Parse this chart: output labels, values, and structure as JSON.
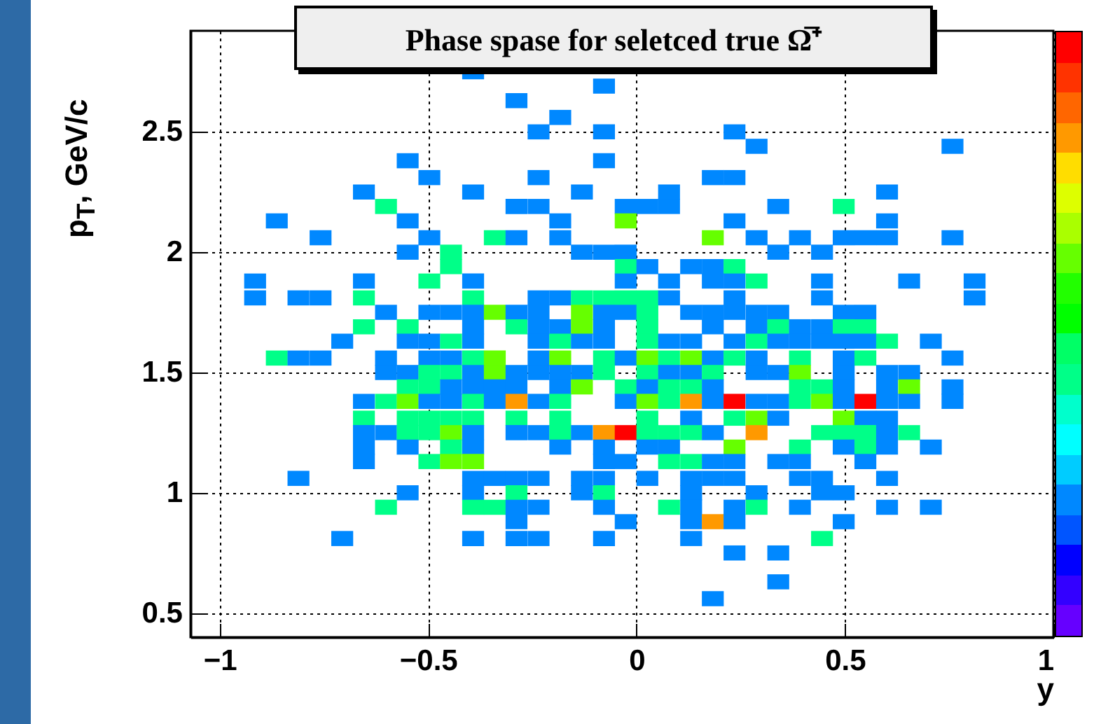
{
  "chart_data": {
    "type": "scatter",
    "title": "Phase spase for seletced true Ω̅⁺",
    "xlabel": "y",
    "ylabel": "p$_{T}$, GeV/c",
    "marker": "square",
    "grid": true,
    "xlim": [
      -1.07,
      1.0
    ],
    "ylim": [
      0.4,
      2.92
    ],
    "xticks": [
      -1,
      -0.5,
      0,
      0.5,
      1
    ],
    "yticks": [
      0.5,
      1,
      1.5,
      2,
      2.5
    ],
    "x": [
      -0.392,
      -0.078,
      -0.288,
      -0.183,
      -0.235,
      -0.078,
      0.235,
      0.288,
      0.758,
      -0.549,
      -0.078,
      -0.497,
      -0.235,
      0.183,
      0.235,
      -0.654,
      -0.392,
      -0.131,
      0.078,
      0.601,
      -0.601,
      -0.288,
      -0.235,
      -0.026,
      0.026,
      0.078,
      0.34,
      0.497,
      -0.863,
      -0.549,
      -0.183,
      -0.026,
      0.235,
      0.601,
      -0.758,
      -0.497,
      -0.34,
      -0.288,
      -0.183,
      0.183,
      0.288,
      0.392,
      0.497,
      0.549,
      0.601,
      0.758,
      -0.549,
      -0.445,
      -0.131,
      -0.078,
      -0.026,
      0.34,
      0.445,
      -0.445,
      -0.026,
      0.026,
      0.131,
      0.183,
      0.235,
      -0.915,
      -0.654,
      -0.497,
      -0.392,
      -0.026,
      0.078,
      0.183,
      0.235,
      0.288,
      0.445,
      0.654,
      0.811,
      -0.915,
      -0.811,
      -0.758,
      -0.654,
      -0.392,
      -0.235,
      -0.183,
      -0.131,
      -0.078,
      -0.026,
      0.026,
      0.078,
      0.235,
      0.445,
      0.811,
      -0.601,
      -0.497,
      -0.445,
      -0.392,
      -0.34,
      -0.288,
      -0.235,
      -0.131,
      -0.078,
      -0.026,
      0.026,
      0.131,
      0.183,
      0.235,
      0.288,
      0.34,
      0.497,
      0.549,
      -0.654,
      -0.549,
      -0.392,
      -0.288,
      -0.235,
      -0.183,
      -0.131,
      -0.078,
      0.026,
      0.183,
      0.288,
      0.34,
      0.392,
      0.445,
      0.497,
      0.549,
      -0.706,
      -0.549,
      -0.497,
      -0.445,
      -0.392,
      -0.235,
      -0.183,
      -0.131,
      -0.078,
      0.026,
      0.078,
      0.131,
      0.235,
      0.288,
      0.34,
      0.392,
      0.445,
      0.497,
      0.549,
      0.601,
      0.706,
      -0.863,
      -0.811,
      -0.758,
      -0.601,
      -0.497,
      -0.445,
      -0.392,
      -0.34,
      -0.235,
      -0.183,
      -0.078,
      -0.026,
      0.026,
      0.078,
      0.131,
      0.183,
      0.235,
      0.288,
      0.392,
      0.497,
      0.549,
      0.758,
      -0.601,
      -0.549,
      -0.497,
      -0.445,
      -0.392,
      -0.34,
      -0.288,
      -0.235,
      -0.183,
      -0.131,
      -0.078,
      0.026,
      0.078,
      0.131,
      0.183,
      0.288,
      0.34,
      0.392,
      0.497,
      0.601,
      0.654,
      -0.549,
      -0.497,
      -0.445,
      -0.392,
      -0.34,
      -0.288,
      -0.183,
      -0.131,
      -0.026,
      0.026,
      0.078,
      0.131,
      0.183,
      0.392,
      0.445,
      0.497,
      0.601,
      0.654,
      0.758,
      -0.654,
      -0.601,
      -0.549,
      -0.497,
      -0.445,
      -0.392,
      -0.34,
      -0.288,
      -0.235,
      -0.183,
      -0.026,
      0.026,
      0.078,
      0.131,
      0.183,
      0.235,
      0.288,
      0.34,
      0.392,
      0.445,
      0.497,
      0.549,
      0.601,
      0.654,
      0.758,
      -0.654,
      -0.549,
      -0.497,
      -0.445,
      -0.392,
      -0.288,
      -0.183,
      0.026,
      0.131,
      0.235,
      0.288,
      0.34,
      0.497,
      0.549,
      0.601,
      -0.654,
      -0.601,
      -0.549,
      -0.497,
      -0.445,
      -0.392,
      -0.288,
      -0.235,
      -0.183,
      -0.131,
      -0.078,
      -0.026,
      0.026,
      0.078,
      0.131,
      0.183,
      0.288,
      0.445,
      0.497,
      0.549,
      0.601,
      0.654,
      -0.654,
      -0.549,
      -0.445,
      -0.392,
      -0.183,
      -0.078,
      0.026,
      0.078,
      0.235,
      0.392,
      0.497,
      0.549,
      0.601,
      0.706,
      -0.654,
      -0.497,
      -0.445,
      -0.392,
      -0.078,
      -0.026,
      0.078,
      0.131,
      0.183,
      0.235,
      0.34,
      0.392,
      0.549,
      -0.811,
      -0.392,
      -0.34,
      -0.288,
      -0.235,
      -0.131,
      -0.078,
      0.026,
      0.131,
      0.183,
      0.235,
      0.392,
      0.445,
      0.601,
      -0.549,
      -0.392,
      -0.288,
      -0.131,
      -0.078,
      0.131,
      0.288,
      0.445,
      0.497,
      -0.601,
      -0.392,
      -0.34,
      -0.288,
      -0.235,
      -0.078,
      0.078,
      0.131,
      0.235,
      0.288,
      0.392,
      0.601,
      0.706,
      -0.288,
      -0.026,
      0.131,
      0.183,
      0.235,
      0.497,
      -0.706,
      -0.392,
      -0.288,
      -0.235,
      -0.078,
      0.131,
      0.445,
      0.235,
      0.34,
      0.34,
      0.183
    ],
    "values": [
      2.75,
      2.69,
      2.63,
      2.56,
      2.5,
      2.5,
      2.5,
      2.44,
      2.44,
      2.38,
      2.38,
      2.31,
      2.31,
      2.31,
      2.31,
      2.25,
      2.25,
      2.25,
      2.25,
      2.25,
      2.19,
      2.19,
      2.19,
      2.19,
      2.19,
      2.19,
      2.19,
      2.19,
      2.13,
      2.13,
      2.13,
      2.13,
      2.13,
      2.13,
      2.06,
      2.06,
      2.06,
      2.06,
      2.06,
      2.06,
      2.06,
      2.06,
      2.06,
      2.06,
      2.06,
      2.06,
      2,
      2,
      2,
      2,
      2,
      2,
      2,
      1.94,
      1.94,
      1.94,
      1.94,
      1.94,
      1.94,
      1.88,
      1.88,
      1.88,
      1.88,
      1.88,
      1.88,
      1.88,
      1.88,
      1.88,
      1.88,
      1.88,
      1.88,
      1.81,
      1.81,
      1.81,
      1.81,
      1.81,
      1.81,
      1.81,
      1.81,
      1.81,
      1.81,
      1.81,
      1.81,
      1.81,
      1.81,
      1.81,
      1.75,
      1.75,
      1.75,
      1.75,
      1.75,
      1.75,
      1.75,
      1.75,
      1.75,
      1.75,
      1.75,
      1.75,
      1.75,
      1.75,
      1.75,
      1.75,
      1.75,
      1.75,
      1.69,
      1.69,
      1.69,
      1.69,
      1.69,
      1.69,
      1.69,
      1.69,
      1.69,
      1.69,
      1.69,
      1.69,
      1.69,
      1.69,
      1.69,
      1.69,
      1.63,
      1.63,
      1.63,
      1.63,
      1.63,
      1.63,
      1.63,
      1.63,
      1.63,
      1.63,
      1.63,
      1.63,
      1.63,
      1.63,
      1.63,
      1.63,
      1.63,
      1.63,
      1.63,
      1.63,
      1.63,
      1.56,
      1.56,
      1.56,
      1.56,
      1.56,
      1.56,
      1.56,
      1.56,
      1.56,
      1.56,
      1.56,
      1.56,
      1.56,
      1.56,
      1.56,
      1.56,
      1.56,
      1.56,
      1.56,
      1.56,
      1.56,
      1.56,
      1.5,
      1.5,
      1.5,
      1.5,
      1.5,
      1.5,
      1.5,
      1.5,
      1.5,
      1.5,
      1.5,
      1.5,
      1.5,
      1.5,
      1.5,
      1.5,
      1.5,
      1.5,
      1.5,
      1.5,
      1.5,
      1.44,
      1.44,
      1.44,
      1.44,
      1.44,
      1.44,
      1.44,
      1.44,
      1.44,
      1.44,
      1.44,
      1.44,
      1.44,
      1.44,
      1.44,
      1.44,
      1.44,
      1.44,
      1.44,
      1.38,
      1.38,
      1.38,
      1.38,
      1.38,
      1.38,
      1.38,
      1.38,
      1.38,
      1.38,
      1.38,
      1.38,
      1.38,
      1.38,
      1.38,
      1.38,
      1.38,
      1.38,
      1.38,
      1.38,
      1.38,
      1.38,
      1.38,
      1.38,
      1.38,
      1.31,
      1.31,
      1.31,
      1.31,
      1.31,
      1.31,
      1.31,
      1.31,
      1.31,
      1.31,
      1.31,
      1.31,
      1.31,
      1.31,
      1.31,
      1.25,
      1.25,
      1.25,
      1.25,
      1.25,
      1.25,
      1.25,
      1.25,
      1.25,
      1.25,
      1.25,
      1.25,
      1.25,
      1.25,
      1.25,
      1.25,
      1.25,
      1.25,
      1.25,
      1.25,
      1.25,
      1.25,
      1.19,
      1.19,
      1.19,
      1.19,
      1.19,
      1.19,
      1.19,
      1.19,
      1.19,
      1.19,
      1.19,
      1.19,
      1.19,
      1.19,
      1.13,
      1.13,
      1.13,
      1.13,
      1.13,
      1.13,
      1.13,
      1.13,
      1.13,
      1.13,
      1.13,
      1.13,
      1.13,
      1.06,
      1.06,
      1.06,
      1.06,
      1.06,
      1.06,
      1.06,
      1.06,
      1.06,
      1.06,
      1.06,
      1.06,
      1.06,
      1.06,
      1,
      1,
      1,
      1,
      1,
      1,
      1,
      1,
      1,
      0.94,
      0.94,
      0.94,
      0.94,
      0.94,
      0.94,
      0.94,
      0.94,
      0.94,
      0.94,
      0.94,
      0.94,
      0.94,
      0.88,
      0.88,
      0.88,
      0.88,
      0.88,
      0.88,
      0.81,
      0.81,
      0.81,
      0.81,
      0.81,
      0.81,
      0.81,
      0.75,
      0.75,
      0.63,
      0.56
    ],
    "colors": [
      "#0088ff",
      "#0088ff",
      "#0088ff",
      "#0088ff",
      "#0088ff",
      "#0088ff",
      "#0088ff",
      "#0088ff",
      "#0088ff",
      "#0088ff",
      "#0088ff",
      "#0088ff",
      "#0088ff",
      "#0088ff",
      "#0088ff",
      "#0088ff",
      "#0088ff",
      "#0088ff",
      "#0088ff",
      "#0088ff",
      "#00ff88",
      "#0088ff",
      "#0088ff",
      "#0088ff",
      "#0088ff",
      "#0088ff",
      "#0088ff",
      "#00ff88",
      "#0088ff",
      "#0088ff",
      "#0088ff",
      "#66ff00",
      "#0088ff",
      "#0088ff",
      "#0088ff",
      "#0088ff",
      "#00ff88",
      "#0088ff",
      "#0088ff",
      "#66ff00",
      "#0088ff",
      "#0088ff",
      "#0088ff",
      "#0088ff",
      "#0088ff",
      "#0088ff",
      "#0088ff",
      "#00ff88",
      "#0088ff",
      "#0088ff",
      "#0088ff",
      "#0088ff",
      "#0088ff",
      "#00ff88",
      "#00ff88",
      "#0088ff",
      "#0088ff",
      "#0088ff",
      "#00ff88",
      "#0088ff",
      "#0088ff",
      "#00ff88",
      "#0088ff",
      "#0088ff",
      "#0088ff",
      "#0088ff",
      "#0088ff",
      "#00ff88",
      "#0088ff",
      "#0088ff",
      "#0088ff",
      "#0088ff",
      "#0088ff",
      "#0088ff",
      "#00ff88",
      "#00ff88",
      "#0088ff",
      "#0088ff",
      "#00ff88",
      "#00ff88",
      "#00ff88",
      "#00ff88",
      "#0088ff",
      "#0088ff",
      "#0088ff",
      "#0088ff",
      "#0088ff",
      "#0088ff",
      "#0088ff",
      "#0088ff",
      "#66ff00",
      "#0088ff",
      "#0088ff",
      "#66ff00",
      "#0088ff",
      "#0088ff",
      "#00ff88",
      "#0088ff",
      "#0088ff",
      "#0088ff",
      "#0088ff",
      "#0088ff",
      "#0088ff",
      "#0088ff",
      "#00ff88",
      "#00ff88",
      "#0088ff",
      "#00ff88",
      "#0088ff",
      "#0088ff",
      "#66ff00",
      "#0088ff",
      "#00ff88",
      "#0088ff",
      "#0088ff",
      "#00ff88",
      "#0088ff",
      "#0088ff",
      "#00ff88",
      "#00ff88",
      "#0088ff",
      "#0088ff",
      "#0088ff",
      "#00ff88",
      "#0088ff",
      "#0088ff",
      "#00ff88",
      "#0088ff",
      "#0088ff",
      "#00ff88",
      "#0088ff",
      "#0088ff",
      "#0088ff",
      "#00ff88",
      "#0088ff",
      "#0088ff",
      "#0088ff",
      "#0088ff",
      "#0088ff",
      "#00ff88",
      "#0088ff",
      "#00ff88",
      "#0088ff",
      "#0088ff",
      "#0088ff",
      "#0088ff",
      "#0088ff",
      "#00ff88",
      "#66ff00",
      "#0088ff",
      "#66ff00",
      "#00ff88",
      "#0088ff",
      "#66ff00",
      "#00ff88",
      "#66ff00",
      "#0088ff",
      "#00ff88",
      "#0088ff",
      "#00ff88",
      "#0088ff",
      "#00ff88",
      "#0088ff",
      "#0088ff",
      "#0088ff",
      "#00ff88",
      "#00ff88",
      "#0088ff",
      "#66ff00",
      "#0088ff",
      "#0088ff",
      "#0088ff",
      "#0088ff",
      "#00ff88",
      "#00ff88",
      "#0088ff",
      "#0088ff",
      "#00ff88",
      "#0088ff",
      "#0088ff",
      "#66ff00",
      "#0088ff",
      "#0088ff",
      "#0088ff",
      "#00ff88",
      "#00ff88",
      "#0088ff",
      "#0088ff",
      "#0088ff",
      "#0088ff",
      "#0088ff",
      "#66ff00",
      "#00ff88",
      "#0088ff",
      "#00ff88",
      "#00ff88",
      "#0088ff",
      "#00ff88",
      "#00ff88",
      "#0088ff",
      "#0088ff",
      "#66ff00",
      "#0088ff",
      "#0088ff",
      "#00ff88",
      "#66ff00",
      "#0088ff",
      "#0088ff",
      "#00ff88",
      "#0088ff",
      "#ff9900",
      "#0088ff",
      "#00ff88",
      "#0088ff",
      "#66ff00",
      "#00ff88",
      "#ff9900",
      "#0088ff",
      "#ff0000",
      "#0088ff",
      "#0088ff",
      "#00ff88",
      "#66ff00",
      "#0088ff",
      "#ff0000",
      "#0088ff",
      "#0088ff",
      "#0088ff",
      "#00ff88",
      "#00ff88",
      "#00ff88",
      "#00ff88",
      "#00ff88",
      "#00ff88",
      "#00ff88",
      "#00ff88",
      "#0088ff",
      "#00ff88",
      "#66ff00",
      "#0088ff",
      "#66ff00",
      "#0088ff",
      "#0088ff",
      "#0088ff",
      "#0088ff",
      "#00ff88",
      "#00ff88",
      "#66ff00",
      "#0088ff",
      "#0088ff",
      "#0088ff",
      "#00ff88",
      "#0088ff",
      "#ff9900",
      "#ff0000",
      "#00ff88",
      "#00ff88",
      "#00ff88",
      "#0088ff",
      "#ff9900",
      "#00ff88",
      "#00ff88",
      "#00ff88",
      "#0088ff",
      "#00ff88",
      "#0088ff",
      "#0088ff",
      "#00ff88",
      "#0088ff",
      "#0088ff",
      "#0088ff",
      "#0088ff",
      "#0088ff",
      "#66ff00",
      "#00ff88",
      "#0088ff",
      "#00ff88",
      "#0088ff",
      "#0088ff",
      "#0088ff",
      "#00ff88",
      "#66ff00",
      "#66ff00",
      "#0088ff",
      "#0088ff",
      "#00ff88",
      "#00ff88",
      "#0088ff",
      "#0088ff",
      "#0088ff",
      "#0088ff",
      "#0088ff",
      "#0088ff",
      "#0088ff",
      "#0088ff",
      "#0088ff",
      "#0088ff",
      "#0088ff",
      "#0088ff",
      "#0088ff",
      "#0088ff",
      "#0088ff",
      "#0088ff",
      "#0088ff",
      "#0088ff",
      "#0088ff",
      "#0088ff",
      "#0088ff",
      "#00ff88",
      "#0088ff",
      "#00ff88",
      "#0088ff",
      "#0088ff",
      "#0088ff",
      "#0088ff",
      "#00ff88",
      "#00ff88",
      "#00ff88",
      "#0088ff",
      "#0088ff",
      "#0088ff",
      "#00ff88",
      "#0088ff",
      "#0088ff",
      "#00ff88",
      "#0088ff",
      "#0088ff",
      "#0088ff",
      "#0088ff",
      "#0088ff",
      "#0088ff",
      "#ff9900",
      "#0088ff",
      "#0088ff",
      "#0088ff",
      "#0088ff",
      "#0088ff",
      "#0088ff",
      "#0088ff",
      "#0088ff",
      "#00ff88",
      "#0088ff",
      "#0088ff",
      "#0088ff",
      "#0088ff"
    ]
  }
}
